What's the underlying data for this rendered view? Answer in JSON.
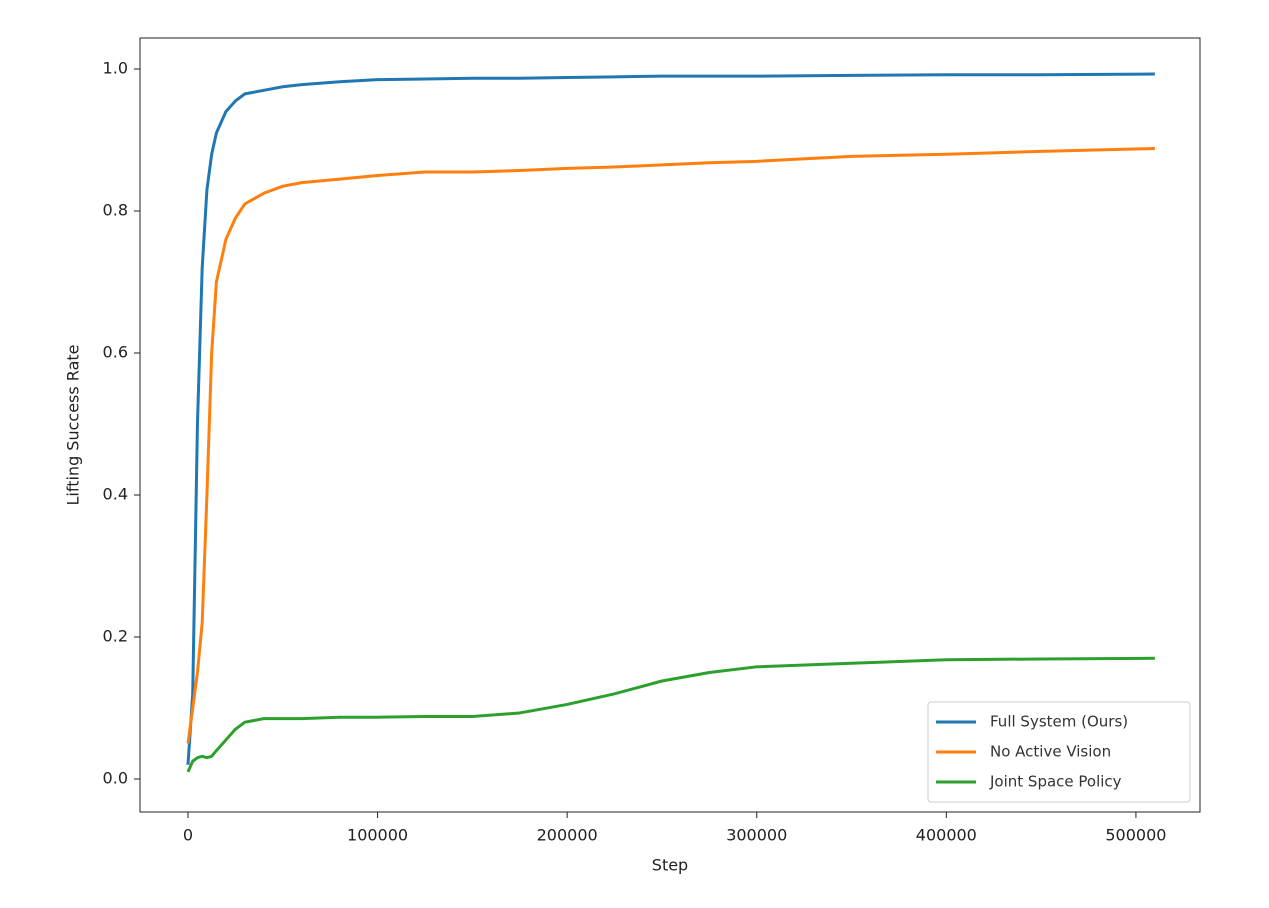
{
  "chart_data": {
    "type": "line",
    "x_label": "Step",
    "y_label": "Lifting Success Rate",
    "x": [
      0,
      2500,
      5000,
      7500,
      10000,
      12500,
      15000,
      20000,
      25000,
      30000,
      40000,
      50000,
      60000,
      80000,
      100000,
      125000,
      150000,
      175000,
      200000,
      225000,
      250000,
      275000,
      300000,
      350000,
      400000,
      450000,
      510000
    ],
    "series": [
      {
        "name": "Full System (Ours)",
        "color": "#1f77b4",
        "values": [
          0.02,
          0.12,
          0.5,
          0.72,
          0.83,
          0.88,
          0.91,
          0.94,
          0.955,
          0.965,
          0.97,
          0.975,
          0.978,
          0.982,
          0.985,
          0.986,
          0.987,
          0.987,
          0.988,
          0.989,
          0.99,
          0.99,
          0.99,
          0.991,
          0.992,
          0.992,
          0.993
        ]
      },
      {
        "name": "No Active Vision",
        "color": "#ff7f0e",
        "values": [
          0.05,
          0.1,
          0.15,
          0.22,
          0.4,
          0.6,
          0.7,
          0.76,
          0.79,
          0.81,
          0.825,
          0.835,
          0.84,
          0.845,
          0.85,
          0.855,
          0.855,
          0.857,
          0.86,
          0.862,
          0.865,
          0.868,
          0.87,
          0.877,
          0.88,
          0.884,
          0.888
        ]
      },
      {
        "name": "Joint Space Policy",
        "color": "#2ca02c",
        "values": [
          0.01,
          0.025,
          0.03,
          0.032,
          0.03,
          0.032,
          0.04,
          0.055,
          0.07,
          0.08,
          0.085,
          0.085,
          0.085,
          0.087,
          0.087,
          0.088,
          0.088,
          0.093,
          0.105,
          0.12,
          0.138,
          0.15,
          0.158,
          0.163,
          0.168,
          0.169,
          0.17
        ]
      }
    ],
    "xlim": [
      -25300,
      533800
    ],
    "ylim": [
      -0.0465,
      1.0437
    ],
    "xticks": [
      0,
      100000,
      200000,
      300000,
      400000,
      500000
    ],
    "yticks": [
      {
        "value": 0,
        "label": "0.0"
      },
      0.2,
      0.4,
      0.6,
      0.8,
      {
        "value": 1,
        "label": "1.0"
      }
    ],
    "grid": false,
    "legend": "lower right"
  }
}
